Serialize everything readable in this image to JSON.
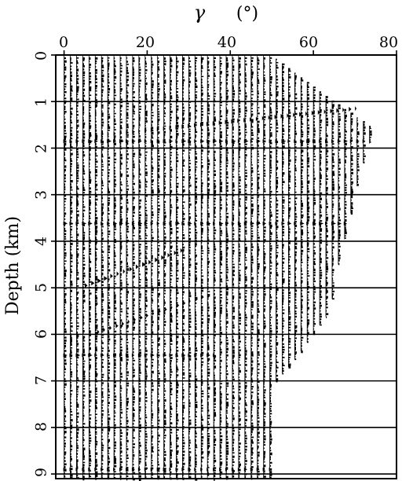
{
  "chart_data": {
    "type": "heatmap",
    "title": "",
    "xlabel_symbol": "γ",
    "xlabel_unit": "(°)",
    "ylabel": "Depth (km)",
    "xlim": [
      -2,
      80
    ],
    "ylim": [
      9.1,
      0
    ],
    "x_ticks": [
      "0",
      "20",
      "40",
      "60",
      "80"
    ],
    "x_tick_values": [
      0,
      20,
      40,
      60,
      80
    ],
    "y_ticks": [
      "0",
      "1",
      "2",
      "3",
      "4",
      "5",
      "6",
      "7",
      "8",
      "9"
    ],
    "y_tick_values": [
      0,
      1,
      2,
      3,
      4,
      5,
      6,
      7,
      8,
      9
    ],
    "horizontal_grid": true,
    "trace_spacing_deg": 1.5,
    "aperture_profile": [
      {
        "depth": 0.0,
        "max_gamma": 50
      },
      {
        "depth": 1.0,
        "max_gamma": 65
      },
      {
        "depth": 1.6,
        "max_gamma": 75
      },
      {
        "depth": 2.0,
        "max_gamma": 73
      },
      {
        "depth": 3.0,
        "max_gamma": 70
      },
      {
        "depth": 3.8,
        "max_gamma": 68
      },
      {
        "depth": 4.5,
        "max_gamma": 66
      },
      {
        "depth": 5.5,
        "max_gamma": 64
      },
      {
        "depth": 6.0,
        "max_gamma": 60
      },
      {
        "depth": 6.5,
        "max_gamma": 56
      },
      {
        "depth": 7.0,
        "max_gamma": 51
      },
      {
        "depth": 8.0,
        "max_gamma": 50
      },
      {
        "depth": 8.5,
        "max_gamma": 50
      },
      {
        "depth": 9.1,
        "max_gamma": 50
      }
    ],
    "reflectors": [
      {
        "depth": 1.85,
        "gamma_end": 73,
        "strength": 1.0
      },
      {
        "depth": 3.62,
        "gamma_end": 68,
        "strength": 1.0
      },
      {
        "depth": 6.45,
        "gamma_end": 36,
        "strength": 1.0
      },
      {
        "depth": 8.9,
        "gamma_end": 50,
        "strength": 0.7
      }
    ],
    "dipping_events": [
      {
        "gamma_start": 0,
        "depth_start": 1.8,
        "gamma_end": 70,
        "depth_end": 1.15,
        "strength": 0.6
      },
      {
        "gamma_start": 5,
        "depth_start": 4.95,
        "gamma_end": 28,
        "depth_end": 4.2,
        "strength": 0.8
      },
      {
        "gamma_start": 8,
        "depth_start": 5.95,
        "gamma_end": 33,
        "depth_end": 5.2,
        "strength": 0.6
      }
    ]
  }
}
